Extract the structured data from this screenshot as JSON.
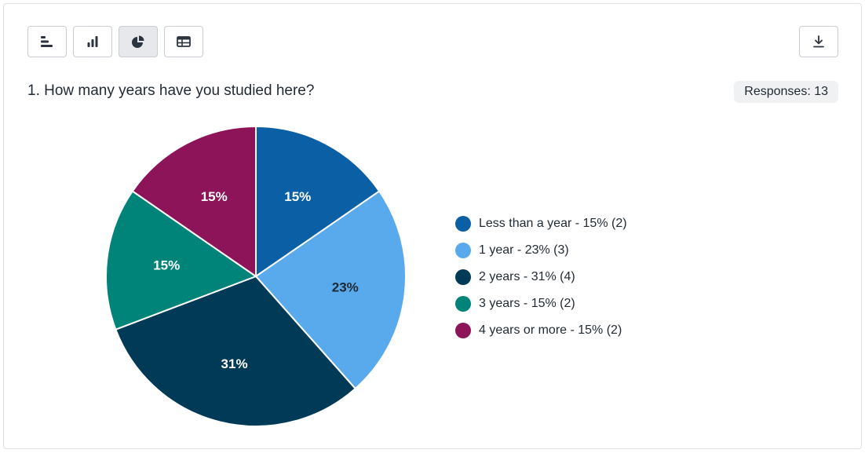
{
  "toolbar": {
    "buttons": [
      {
        "icon": "horizontal-bar-chart-icon",
        "active": false
      },
      {
        "icon": "vertical-bar-chart-icon",
        "active": false
      },
      {
        "icon": "pie-chart-icon",
        "active": true
      },
      {
        "icon": "table-icon",
        "active": false
      }
    ],
    "download_icon": "download-icon"
  },
  "question": "1. How many years have you studied here?",
  "responses_label": "Responses: 13",
  "chart_data": {
    "type": "pie",
    "title": "1. How many years have you studied here?",
    "total": 13,
    "slices": [
      {
        "label": "Less than a year",
        "count": 2,
        "percent": 15,
        "color": "#0b5fa5",
        "text_color": "#ffffff",
        "legend": "Less than a year - 15% (2)"
      },
      {
        "label": "1 year",
        "count": 3,
        "percent": 23,
        "color": "#59aaec",
        "text_color": "#1f2933",
        "legend": "1 year - 23% (3)"
      },
      {
        "label": "2 years",
        "count": 4,
        "percent": 31,
        "color": "#003a57",
        "text_color": "#ffffff",
        "legend": "2 years - 31% (4)"
      },
      {
        "label": "3 years",
        "count": 2,
        "percent": 15,
        "color": "#00847a",
        "text_color": "#ffffff",
        "legend": "3 years - 15% (2)"
      },
      {
        "label": "4 years or more",
        "count": 2,
        "percent": 15,
        "color": "#8d1458",
        "text_color": "#ffffff",
        "legend": "4 years or more - 15% (2)"
      }
    ],
    "start_angle": "12 o'clock",
    "direction": "clockwise",
    "legend_position": "right"
  }
}
